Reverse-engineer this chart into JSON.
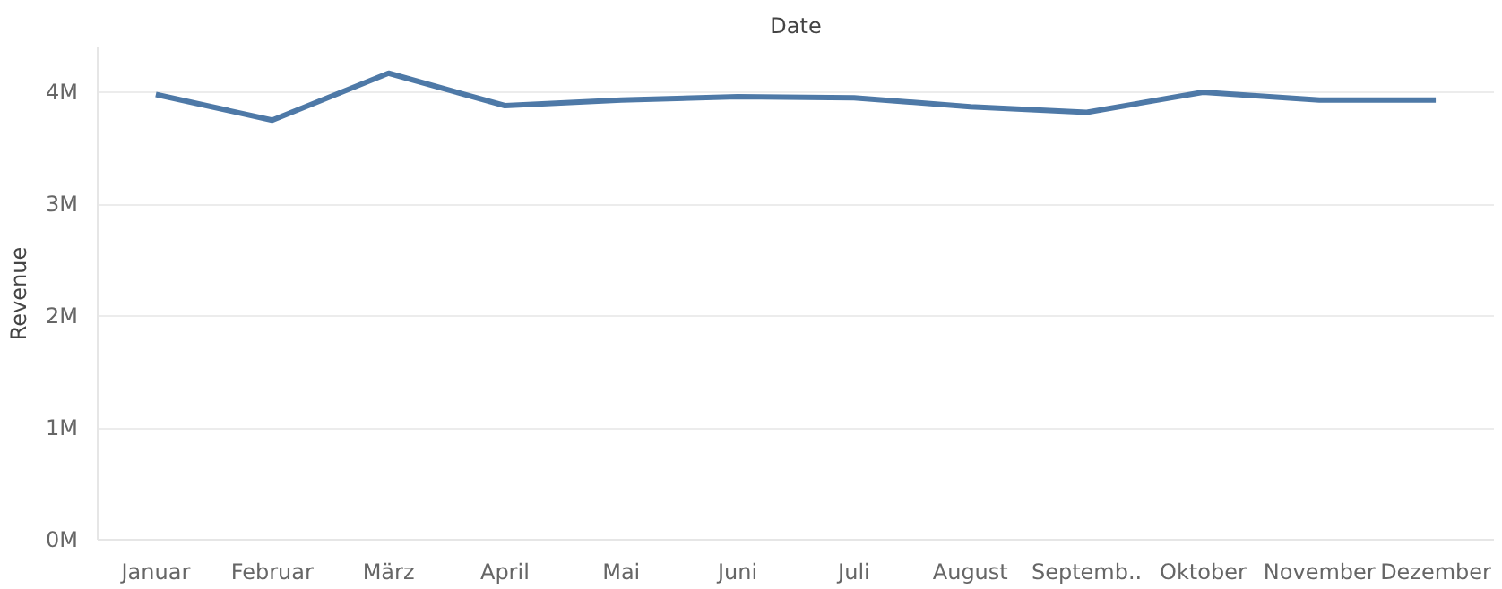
{
  "chart_data": {
    "type": "line",
    "xlabel": "Date",
    "ylabel": "Revenue",
    "categories": [
      "Januar",
      "Februar",
      "März",
      "April",
      "Mai",
      "Juni",
      "Juli",
      "August",
      "Septemb..",
      "Oktober",
      "November",
      "Dezember"
    ],
    "series": [
      {
        "color": "#4e79a7",
        "values": [
          3980000,
          3750000,
          4170000,
          3880000,
          3930000,
          3960000,
          3950000,
          3870000,
          3820000,
          4000000,
          3930000,
          3930000
        ]
      }
    ],
    "ylim": [
      0,
      4400000
    ],
    "yticks": [
      {
        "value": 0,
        "label": "0M"
      },
      {
        "value": 1000000,
        "label": "1M"
      },
      {
        "value": 2000000,
        "label": "2M"
      },
      {
        "value": 3000000,
        "label": "3M"
      },
      {
        "value": 4000000,
        "label": "4M"
      }
    ],
    "grid": "y",
    "marker": "none",
    "line_style": "solid"
  }
}
